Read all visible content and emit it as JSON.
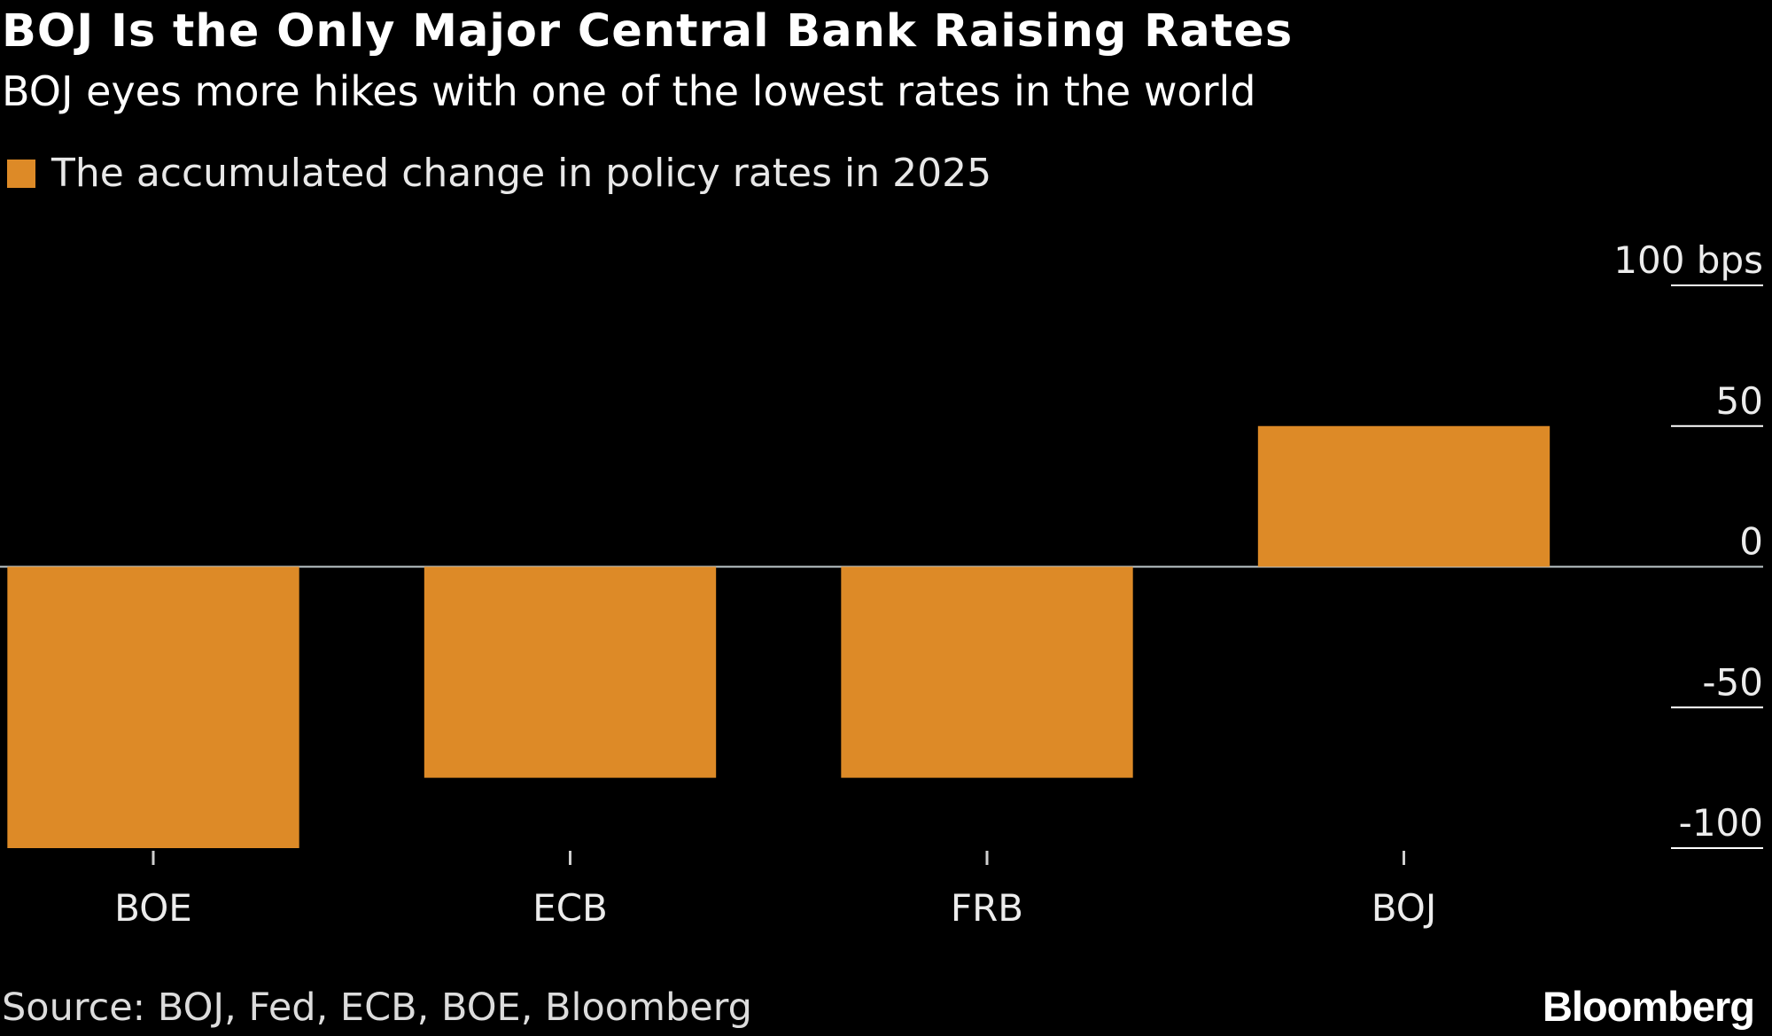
{
  "header": {
    "title": "BOJ Is the Only Major Central Bank Raising Rates",
    "subtitle": "BOJ eyes more hikes with one of the lowest rates in the world"
  },
  "legend": {
    "label": "The accumulated change in policy rates in 2025"
  },
  "footer": {
    "source": "Source: BOJ, Fed, ECB, BOE, Bloomberg",
    "brand": "Bloomberg"
  },
  "colors": {
    "background": "#000000",
    "bar": "#dd8a27",
    "zero_line": "#bfc9cc",
    "gridline": "#ffffff",
    "text": "#ffffff"
  },
  "chart_data": {
    "type": "bar",
    "categories": [
      "BOE",
      "ECB",
      "FRB",
      "BOJ"
    ],
    "series": [
      {
        "name": "The accumulated change in policy rates in 2025",
        "values": [
          -100,
          -75,
          -75,
          50
        ]
      }
    ],
    "ylim": [
      -100,
      100
    ],
    "y_ticks": [
      100,
      50,
      0,
      -50,
      -100
    ],
    "y_tick_labels": [
      "100 bps",
      "50",
      "0",
      "-50",
      "-100"
    ],
    "y_axis_position": "right",
    "grid": false,
    "legend_position": "top-left"
  }
}
